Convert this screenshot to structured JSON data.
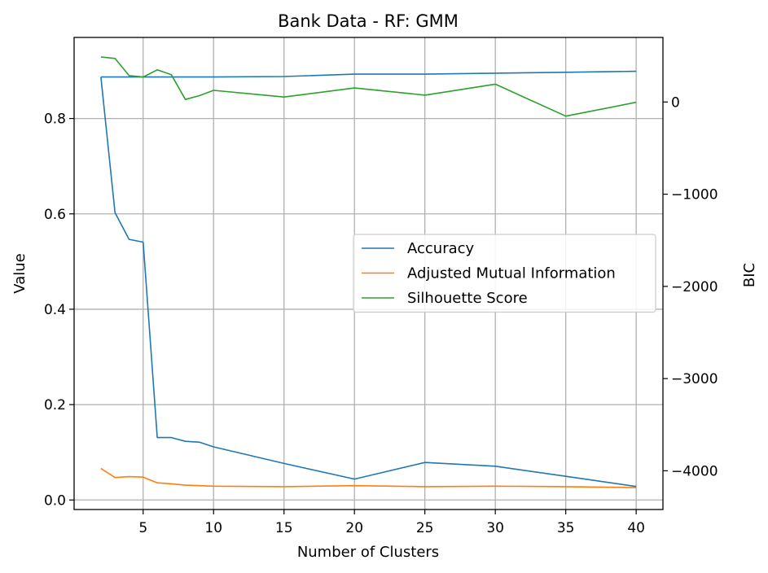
{
  "chart_data": {
    "type": "line",
    "title": "Bank Data - RF: GMM",
    "xlabel": "Number of Clusters",
    "ylabel": "Value",
    "y2label": "BIC",
    "xlim": [
      0.1,
      41.9
    ],
    "ylim": [
      -0.02,
      0.97
    ],
    "y2lim": [
      -4420,
      700
    ],
    "xticks": [
      5,
      10,
      15,
      20,
      25,
      30,
      35,
      40
    ],
    "yticks": [
      0.0,
      0.2,
      0.4,
      0.6,
      0.8
    ],
    "ytick_labels": [
      "0.0",
      "0.2",
      "0.4",
      "0.6",
      "0.8"
    ],
    "y2ticks": [
      0,
      -1000,
      -2000,
      -3000,
      -4000
    ],
    "y2tick_labels": [
      "0",
      "−1000",
      "−2000",
      "−3000",
      "−4000"
    ],
    "grid": true,
    "legend_position": "center-right",
    "x": [
      2,
      3,
      4,
      5,
      6,
      7,
      8,
      9,
      10,
      15,
      20,
      25,
      30,
      35,
      40
    ],
    "series": [
      {
        "name": "Accuracy",
        "axis": "left",
        "color": "#1f77b4",
        "values": [
          0.887,
          0.887,
          0.887,
          0.887,
          0.887,
          0.887,
          0.887,
          0.887,
          0.887,
          0.888,
          0.893,
          0.893,
          0.895,
          0.897,
          0.899
        ]
      },
      {
        "name": "Adjusted Mutual Information",
        "axis": "left",
        "color": "#ff7f0e",
        "values": [
          0.066,
          0.047,
          0.049,
          0.048,
          0.036,
          0.034,
          0.031,
          0.03,
          0.029,
          0.028,
          0.03,
          0.028,
          0.029,
          0.028,
          0.026
        ]
      },
      {
        "name": "Silhouette Score",
        "axis": "left",
        "color": "#2ca02c",
        "values": [
          0.929,
          0.926,
          0.89,
          0.887,
          0.902,
          0.892,
          0.84,
          0.848,
          0.859,
          0.845,
          0.864,
          0.849,
          0.872,
          0.805,
          0.834
        ]
      },
      {
        "name": "BIC",
        "axis": "right",
        "color": "#1f77b4",
        "values": [
          270,
          -1200,
          -1490,
          -1520,
          -3640,
          -3640,
          -3680,
          -3690,
          -3740,
          -3920,
          -4090,
          -3910,
          -3950,
          -4060,
          -4170
        ]
      }
    ]
  }
}
